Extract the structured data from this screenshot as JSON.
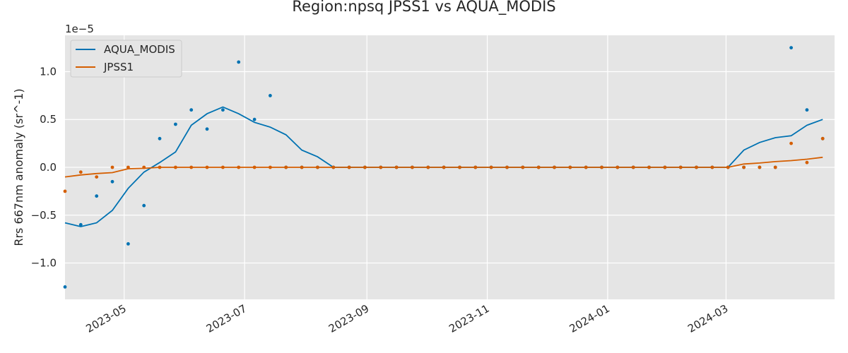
{
  "chart_data": {
    "type": "line",
    "title": "Region:npsq JPSS1 vs AQUA_MODIS",
    "xlabel": "",
    "ylabel": "Rrs 667nm anomaly (sr^-1)",
    "y_offset_label": "1e−5",
    "y_multiplier": 1e-05,
    "xlim": [
      "2023-04-01",
      "2024-04-25"
    ],
    "ylim": [
      -1.38,
      1.38
    ],
    "grid": true,
    "legend_position": "upper-left",
    "x_ticks": [
      {
        "date": "2023-05-01",
        "label": "2023-05"
      },
      {
        "date": "2023-07-01",
        "label": "2023-07"
      },
      {
        "date": "2023-09-01",
        "label": "2023-09"
      },
      {
        "date": "2023-11-01",
        "label": "2023-11"
      },
      {
        "date": "2024-01-01",
        "label": "2024-01"
      },
      {
        "date": "2024-03-01",
        "label": "2024-03"
      }
    ],
    "y_ticks": [
      {
        "value": -1.0,
        "label": "−1.0"
      },
      {
        "value": -0.5,
        "label": "−0.5"
      },
      {
        "value": 0.0,
        "label": "0.0"
      },
      {
        "value": 0.5,
        "label": "0.5"
      },
      {
        "value": 1.0,
        "label": "1.0"
      }
    ],
    "dates": [
      "2023-04-01",
      "2023-04-09",
      "2023-04-17",
      "2023-04-25",
      "2023-05-03",
      "2023-05-11",
      "2023-05-19",
      "2023-05-27",
      "2023-06-04",
      "2023-06-12",
      "2023-06-20",
      "2023-06-28",
      "2023-07-06",
      "2023-07-14",
      "2023-07-22",
      "2023-07-30",
      "2023-08-07",
      "2023-08-15",
      "2023-08-23",
      "2023-08-31",
      "2023-09-08",
      "2023-09-16",
      "2023-09-24",
      "2023-10-02",
      "2023-10-10",
      "2023-10-18",
      "2023-10-26",
      "2023-11-03",
      "2023-11-11",
      "2023-11-19",
      "2023-11-27",
      "2023-12-05",
      "2023-12-13",
      "2023-12-21",
      "2023-12-29",
      "2024-01-06",
      "2024-01-14",
      "2024-01-22",
      "2024-01-30",
      "2024-02-07",
      "2024-02-15",
      "2024-02-23",
      "2024-03-02",
      "2024-03-10",
      "2024-03-18",
      "2024-03-26",
      "2024-04-03",
      "2024-04-11",
      "2024-04-19"
    ],
    "series": [
      {
        "name": "AQUA_MODIS",
        "color": "#0072b2",
        "points": [
          -1.25,
          -0.6,
          -0.3,
          -0.15,
          -0.8,
          -0.4,
          0.3,
          0.45,
          0.6,
          0.4,
          0.6,
          1.1,
          0.5,
          0.75,
          0,
          0,
          0,
          0,
          0,
          0,
          0,
          0,
          0,
          0,
          0,
          0,
          0,
          0,
          0,
          0,
          0,
          0,
          0,
          0,
          0,
          0,
          0,
          0,
          0,
          0,
          0,
          0,
          0,
          0,
          0,
          0,
          1.25,
          0.6,
          0.3
        ],
        "line": [
          -0.58,
          -0.62,
          -0.58,
          -0.45,
          -0.22,
          -0.05,
          0.05,
          0.16,
          0.44,
          0.56,
          0.63,
          0.56,
          0.47,
          0.42,
          0.34,
          0.18,
          0.11,
          0,
          0,
          0,
          0,
          0,
          0,
          0,
          0,
          0,
          0,
          0,
          0,
          0,
          0,
          0,
          0,
          0,
          0,
          0,
          0,
          0,
          0,
          0,
          0,
          0,
          0,
          0.18,
          0.26,
          0.31,
          0.33,
          0.44,
          0.5
        ]
      },
      {
        "name": "JPSS1",
        "color": "#d55e00",
        "points": [
          -0.25,
          -0.05,
          -0.1,
          0,
          0,
          0,
          0,
          0,
          0,
          0,
          0,
          0,
          0,
          0,
          0,
          0,
          0,
          0,
          0,
          0,
          0,
          0,
          0,
          0,
          0,
          0,
          0,
          0,
          0,
          0,
          0,
          0,
          0,
          0,
          0,
          0,
          0,
          0,
          0,
          0,
          0,
          0,
          0,
          0,
          0,
          0,
          0.25,
          0.05,
          0.3
        ],
        "line": [
          -0.1,
          -0.08,
          -0.065,
          -0.055,
          -0.015,
          -0.01,
          0,
          0,
          0,
          0,
          0,
          0,
          0,
          0,
          0,
          0,
          0,
          0,
          0,
          0,
          0,
          0,
          0,
          0,
          0,
          0,
          0,
          0,
          0,
          0,
          0,
          0,
          0,
          0,
          0,
          0,
          0,
          0,
          0,
          0,
          0,
          0,
          0,
          0.035,
          0.045,
          0.06,
          0.07,
          0.085,
          0.105
        ]
      }
    ]
  }
}
